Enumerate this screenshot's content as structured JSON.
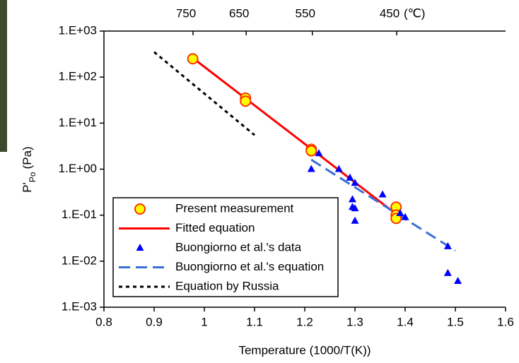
{
  "chart_data": {
    "type": "scatter",
    "x_label": "Temperature (1000/T(K))",
    "y_label": "P'",
    "y_label_sub": "Po",
    "y_label_unit": "(Pa)",
    "xlim": [
      0.8,
      1.6
    ],
    "xticks": [
      0.8,
      0.9,
      1,
      1.1,
      1.2,
      1.3,
      1.4,
      1.5,
      1.6
    ],
    "ylim": [
      0.001,
      1000
    ],
    "log_y": true,
    "yticks": [
      {
        "value": 0.001,
        "label": "1.E-03"
      },
      {
        "value": 0.01,
        "label": "1.E-02"
      },
      {
        "value": 0.1,
        "label": "1.E-01"
      },
      {
        "value": 1,
        "label": "1.E+00"
      },
      {
        "value": 10,
        "label": "1.E+01"
      },
      {
        "value": 100,
        "label": "1.E+02"
      },
      {
        "value": 1000,
        "label": "1.E+03"
      }
    ],
    "x2ticks": [
      {
        "value": 0.9775,
        "label": "750"
      },
      {
        "value": 1.0834,
        "label": "650"
      },
      {
        "value": 1.2151,
        "label": "550"
      },
      {
        "value": 1.3831,
        "label": "450"
      }
    ],
    "x2_unit": "(℃)",
    "legend": "lower left",
    "series": [
      {
        "name": "Present measurement",
        "style": "circle",
        "color": "#ffff00",
        "edge": "#ff3300",
        "x": [
          0.977,
          1.082,
          1.082,
          1.213,
          1.213,
          1.382,
          1.382,
          1.382
        ],
        "values": [
          250,
          35,
          30,
          2.7,
          2.5,
          0.15,
          0.1,
          0.085
        ]
      },
      {
        "name": "Fitted equation",
        "style": "solid",
        "color": "#ff0000",
        "x": [
          0.977,
          1.385
        ],
        "values": [
          260,
          0.1
        ]
      },
      {
        "name": "Buongiorno et al.'s data",
        "style": "triangle",
        "color": "#0000ff",
        "x": [
          1.213,
          1.228,
          1.268,
          1.29,
          1.3,
          1.295,
          1.295,
          1.3,
          1.3,
          1.355,
          1.39,
          1.4,
          1.485,
          1.485,
          1.505
        ],
        "values": [
          1.0,
          2.2,
          1.0,
          0.65,
          0.5,
          0.22,
          0.15,
          0.14,
          0.075,
          0.28,
          0.11,
          0.09,
          0.021,
          0.0055,
          0.0037
        ]
      },
      {
        "name": "Buongiorno et al.'s equation",
        "style": "dashed",
        "color": "#3a6fd8",
        "x": [
          1.213,
          1.5
        ],
        "values": [
          1.6,
          0.017
        ]
      },
      {
        "name": "Equation by Russia",
        "style": "dotted",
        "color": "#000000",
        "x": [
          0.9,
          1.1
        ],
        "values": [
          350,
          5.5
        ]
      }
    ]
  }
}
